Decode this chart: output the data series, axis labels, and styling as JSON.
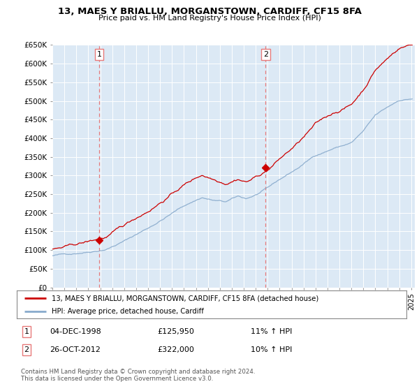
{
  "title": "13, MAES Y BRIALLU, MORGANSTOWN, CARDIFF, CF15 8FA",
  "subtitle": "Price paid vs. HM Land Registry's House Price Index (HPI)",
  "ylim": [
    0,
    650000
  ],
  "yticks": [
    0,
    50000,
    100000,
    150000,
    200000,
    250000,
    300000,
    350000,
    400000,
    450000,
    500000,
    550000,
    600000,
    650000
  ],
  "ytick_labels": [
    "£0",
    "£50K",
    "£100K",
    "£150K",
    "£200K",
    "£250K",
    "£300K",
    "£350K",
    "£400K",
    "£450K",
    "£500K",
    "£550K",
    "£600K",
    "£650K"
  ],
  "background_color": "#ffffff",
  "chart_bg_color": "#dce9f5",
  "grid_color": "#ffffff",
  "sale1_date": 1998.92,
  "sale1_price": 125950,
  "sale2_date": 2012.82,
  "sale2_price": 322000,
  "sale1_label": "1",
  "sale2_label": "2",
  "vline_color": "#e87a7a",
  "property_line_color": "#cc0000",
  "hpi_line_color": "#88aacc",
  "legend_property": "13, MAES Y BRIALLU, MORGANSTOWN, CARDIFF, CF15 8FA (detached house)",
  "legend_hpi": "HPI: Average price, detached house, Cardiff",
  "table_row1": [
    "1",
    "04-DEC-1998",
    "£125,950",
    "11% ↑ HPI"
  ],
  "table_row2": [
    "2",
    "26-OCT-2012",
    "£322,000",
    "10% ↑ HPI"
  ],
  "footnote": "Contains HM Land Registry data © Crown copyright and database right 2024.\nThis data is licensed under the Open Government Licence v3.0.",
  "xlim_start": 1995.0,
  "xlim_end": 2025.3
}
